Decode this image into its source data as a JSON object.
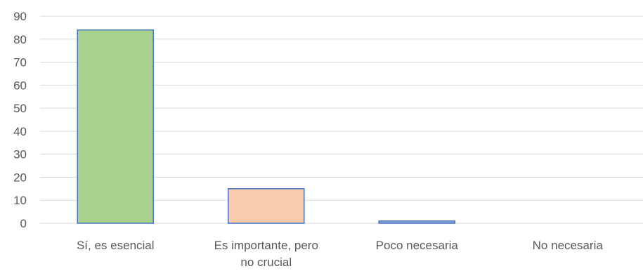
{
  "chart_data": {
    "type": "bar",
    "categories": [
      [
        "Sí, es esencial"
      ],
      [
        "Es importante, pero",
        "no crucial"
      ],
      [
        "Poco necesaria"
      ],
      [
        "No necesaria"
      ]
    ],
    "values": [
      84,
      15,
      1,
      0
    ],
    "colors": [
      "#a9d18e",
      "#f8cbad",
      "#8faadc",
      "#8faadc"
    ],
    "edge_color": "#4472c4",
    "ylim": [
      0,
      90
    ],
    "yticks": [
      0,
      10,
      20,
      30,
      40,
      50,
      60,
      70,
      80,
      90
    ],
    "grid": true,
    "title": "",
    "xlabel": "",
    "ylabel": ""
  }
}
